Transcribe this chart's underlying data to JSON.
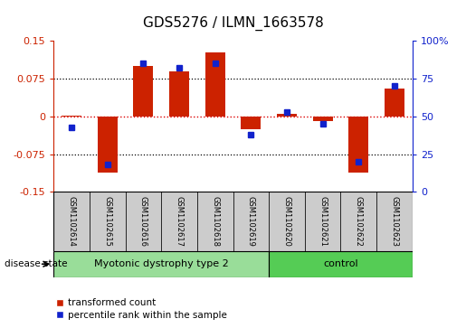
{
  "title": "GDS5276 / ILMN_1663578",
  "samples": [
    "GSM1102614",
    "GSM1102615",
    "GSM1102616",
    "GSM1102617",
    "GSM1102618",
    "GSM1102619",
    "GSM1102620",
    "GSM1102621",
    "GSM1102622",
    "GSM1102623"
  ],
  "red_values": [
    0.002,
    -0.112,
    0.1,
    0.09,
    0.128,
    -0.025,
    0.005,
    -0.01,
    -0.112,
    0.055
  ],
  "blue_values": [
    43,
    18,
    85,
    82,
    85,
    38,
    53,
    45,
    20,
    70
  ],
  "red_color": "#cc2200",
  "blue_color": "#1122cc",
  "ylim_left": [
    -0.15,
    0.15
  ],
  "ylim_right": [
    0,
    100
  ],
  "yticks_left": [
    -0.15,
    -0.075,
    0,
    0.075,
    0.15
  ],
  "yticks_right": [
    0,
    25,
    50,
    75,
    100
  ],
  "ytick_labels_left": [
    "-0.15",
    "-0.075",
    "0",
    "0.075",
    "0.15"
  ],
  "ytick_labels_right": [
    "0",
    "25",
    "50",
    "75",
    "100%"
  ],
  "dotted_lines_black": [
    -0.075,
    0.075
  ],
  "zero_line": 0,
  "groups": [
    {
      "label": "Myotonic dystrophy type 2",
      "start": 0,
      "end": 5,
      "color": "#99dd99"
    },
    {
      "label": "control",
      "start": 6,
      "end": 9,
      "color": "#55cc55"
    }
  ],
  "disease_state_label": "disease state",
  "legend_red": "transformed count",
  "legend_blue": "percentile rank within the sample",
  "bar_width": 0.55,
  "background_color": "#ffffff",
  "zero_line_color": "#dd0000",
  "sample_box_color": "#cccccc",
  "border_color": "#888888"
}
